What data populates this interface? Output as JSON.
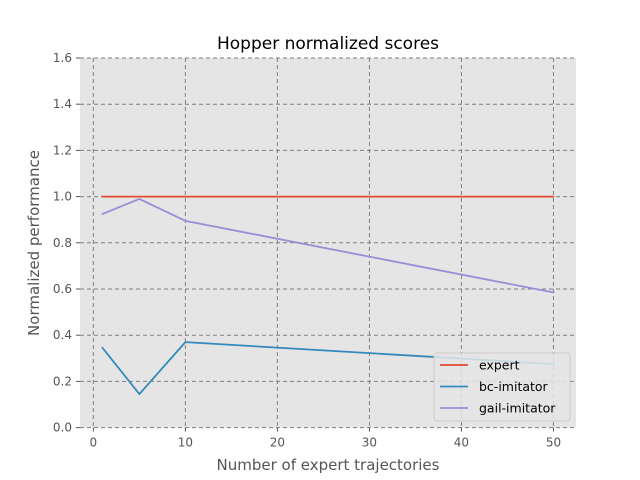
{
  "chart_data": {
    "type": "line",
    "title": "Hopper normalized scores",
    "xlabel": "Number of expert trajectories",
    "ylabel": "Normalized performance",
    "xlim": [
      -1.45,
      52.45
    ],
    "ylim": [
      0.0,
      1.6
    ],
    "xticks": [
      0,
      10,
      20,
      30,
      40,
      50
    ],
    "yticks": [
      0.0,
      0.2,
      0.4,
      0.6,
      0.8,
      1.0,
      1.2,
      1.4,
      1.6
    ],
    "xtick_labels": [
      "0",
      "10",
      "20",
      "30",
      "40",
      "50"
    ],
    "ytick_labels": [
      "0.0",
      "0.2",
      "0.4",
      "0.6",
      "0.8",
      "1.0",
      "1.2",
      "1.4",
      "1.6"
    ],
    "grid": true,
    "legend_position": "lower-right",
    "x": [
      1,
      5,
      10,
      50
    ],
    "series": [
      {
        "name": "expert",
        "color": "#E24A33",
        "values": [
          1.0,
          1.0,
          1.0,
          1.0
        ]
      },
      {
        "name": "bc-imitator",
        "color": "#348ABD",
        "values": [
          0.345,
          0.145,
          0.37,
          0.275
        ]
      },
      {
        "name": "gail-imitator",
        "color": "#988ED5",
        "values": [
          0.925,
          0.99,
          0.895,
          0.585
        ]
      }
    ]
  }
}
